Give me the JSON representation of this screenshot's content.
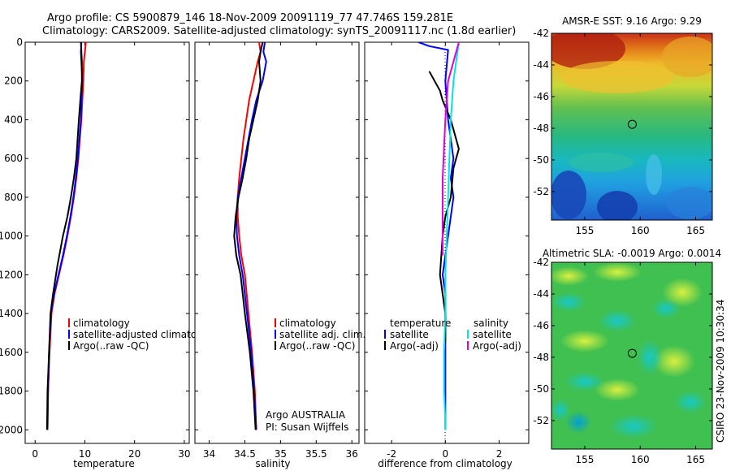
{
  "header": {
    "line1": "Argo profile: CS 5900879_146 18-Nov-2009 20091119_77 47.746S 159.281E",
    "line2": "Climatology: CARS2009. Satellite-adjusted climatology: synTS_20091117.nc (1.8d earlier)"
  },
  "colors": {
    "climatology": "#ff0000",
    "satellite": "#0000ff",
    "argo": "#000000",
    "sal_satellite": "#00e5e5",
    "sal_argo": "#e000e0"
  },
  "chart_data": [
    {
      "type": "line",
      "id": "temperature",
      "xlabel": "temperature",
      "xlim": [
        -2,
        31
      ],
      "ylim": [
        0,
        2070
      ],
      "xticks": [
        "0",
        "10",
        "20",
        "30"
      ],
      "yticks": [
        "0",
        "200",
        "400",
        "600",
        "800",
        "1000",
        "1200",
        "1400",
        "1600",
        "1800",
        "2000"
      ],
      "legend": [
        "climatology",
        "satellite-adjusted climatology",
        "Argo(..raw -QC)"
      ],
      "series": [
        {
          "name": "climatology",
          "color": "#ff0000",
          "x": [
            10.2,
            10.0,
            9.8,
            9.7,
            9.5,
            9.3,
            9.0,
            8.7,
            8.3,
            7.8,
            7.2,
            6.5,
            5.7,
            4.8,
            3.9,
            3.3,
            2.9,
            2.6,
            2.5
          ],
          "y": [
            0,
            50,
            100,
            200,
            300,
            400,
            500,
            600,
            700,
            800,
            900,
            1000,
            1100,
            1200,
            1300,
            1400,
            1600,
            1800,
            2000
          ]
        },
        {
          "name": "satellite",
          "color": "#0000ff",
          "x": [
            9.3,
            9.2,
            9.3,
            9.5,
            9.3,
            9.2,
            8.9,
            8.6,
            8.2,
            7.7,
            7.1,
            6.4,
            5.6,
            4.7,
            3.8,
            3.2,
            2.8,
            2.6,
            2.5
          ],
          "y": [
            0,
            50,
            100,
            200,
            300,
            400,
            500,
            600,
            700,
            800,
            900,
            1000,
            1100,
            1200,
            1300,
            1400,
            1600,
            1800,
            2000
          ]
        },
        {
          "name": "argo",
          "color": "#000000",
          "x": [
            9.2,
            9.3,
            9.4,
            9.4,
            9.1,
            8.8,
            8.3,
            7.8,
            7.2,
            6.5,
            5.6,
            4.5,
            3.6,
            3.1,
            2.8,
            2.5,
            2.4
          ],
          "y": [
            0,
            50,
            100,
            200,
            300,
            400,
            600,
            700,
            800,
            900,
            1000,
            1150,
            1300,
            1400,
            1600,
            1800,
            2000
          ]
        }
      ]
    },
    {
      "type": "line",
      "id": "salinity",
      "xlabel": "salinity",
      "xlim": [
        33.8,
        36.1
      ],
      "ylim": [
        0,
        2070
      ],
      "xticks": [
        "34",
        "34.5",
        "35",
        "35.5",
        "36"
      ],
      "legend": [
        "climatology",
        "satellite adj. clim.",
        "Argo(..raw -QC)"
      ],
      "annotation": [
        "Argo AUSTRALIA",
        "PI: Susan Wijffels"
      ],
      "series": [
        {
          "name": "climatology",
          "color": "#ff0000",
          "x": [
            34.7,
            34.72,
            34.68,
            34.62,
            34.56,
            34.52,
            34.48,
            34.45,
            34.42,
            34.4,
            34.4,
            34.42,
            34.45,
            34.5,
            34.55,
            34.6,
            34.64,
            34.66
          ],
          "y": [
            0,
            50,
            100,
            200,
            300,
            400,
            500,
            600,
            700,
            800,
            900,
            1000,
            1100,
            1200,
            1400,
            1600,
            1800,
            2000
          ]
        },
        {
          "name": "satellite",
          "color": "#0000ff",
          "x": [
            34.78,
            34.76,
            34.8,
            34.75,
            34.66,
            34.6,
            34.55,
            34.5,
            34.45,
            34.4,
            34.38,
            34.39,
            34.42,
            34.47,
            34.53,
            34.59,
            34.63,
            34.66
          ],
          "y": [
            0,
            50,
            100,
            200,
            300,
            400,
            500,
            600,
            700,
            800,
            900,
            1000,
            1100,
            1200,
            1400,
            1600,
            1800,
            2000
          ]
        },
        {
          "name": "argo",
          "color": "#000000",
          "x": [
            34.75,
            34.72,
            34.7,
            34.72,
            34.68,
            34.62,
            34.56,
            34.52,
            34.47,
            34.41,
            34.37,
            34.35,
            34.38,
            34.44,
            34.5,
            34.57,
            34.62,
            34.65
          ],
          "y": [
            0,
            50,
            100,
            200,
            300,
            400,
            500,
            600,
            700,
            800,
            900,
            1000,
            1100,
            1200,
            1400,
            1600,
            1800,
            2000
          ]
        }
      ]
    },
    {
      "type": "line",
      "id": "difference",
      "xlabel": "difference from climatology",
      "xlim": [
        -3,
        3.1
      ],
      "ylim": [
        0,
        2070
      ],
      "xticks": [
        "-2",
        "0",
        "2"
      ],
      "legend_headers": [
        "temperature",
        "salinity"
      ],
      "legend": [
        "satellite",
        "Argo(-adj)",
        "satellite",
        "Argo(-adj)"
      ],
      "series": [
        {
          "name": "temperature satellite",
          "color": "#0000ff",
          "x": [
            -1.0,
            -0.6,
            0.1,
            0.0,
            0.1,
            0.2,
            0.3,
            0.2,
            0.3,
            0.2,
            0.1,
            0.0,
            -0.1,
            0.0,
            0.0,
            0.0,
            0.0,
            0.0
          ],
          "y": [
            0,
            20,
            40,
            200,
            400,
            500,
            600,
            700,
            800,
            900,
            1000,
            1100,
            1200,
            1300,
            1500,
            1700,
            1900,
            2000
          ]
        },
        {
          "name": "temperature argo",
          "color": "#000000",
          "x": [
            -0.6,
            -0.2,
            -0.1,
            0.2,
            0.4,
            0.5,
            0.3,
            0.2,
            0.0,
            -0.1,
            -0.2,
            -0.1,
            0.0,
            0.0,
            0.0
          ],
          "y": [
            150,
            250,
            300,
            400,
            500,
            550,
            650,
            800,
            900,
            1000,
            1200,
            1300,
            1400,
            1500,
            1550
          ]
        },
        {
          "name": "salinity satellite",
          "color": "#00e5e5",
          "x": [
            0.5,
            0.4,
            0.3,
            0.2,
            0.15,
            0.1,
            0.05,
            0.0,
            0.0,
            -0.05,
            -0.05,
            0.0,
            0.0
          ],
          "y": [
            0,
            100,
            200,
            400,
            600,
            800,
            1000,
            1200,
            1400,
            1600,
            1800,
            1950,
            2000
          ]
        },
        {
          "name": "salinity argo",
          "color": "#e000e0",
          "x": [
            0.5,
            0.3,
            0.1,
            0.0,
            -0.1,
            -0.1,
            -0.1,
            -0.1
          ],
          "y": [
            0,
            100,
            200,
            400,
            700,
            900,
            1000,
            1100
          ]
        }
      ]
    },
    {
      "type": "heatmap",
      "id": "sst-map",
      "title": "AMSR-E SST: 9.16 Argo: 9.29",
      "xlim": [
        152,
        166.5
      ],
      "ylim": [
        -53.8,
        -42
      ],
      "xticks": [
        "155",
        "160",
        "165"
      ],
      "yticks": [
        "-42",
        "-44",
        "-46",
        "-48",
        "-50",
        "-52"
      ],
      "marker": {
        "lon": 159.28,
        "lat": -47.75
      }
    },
    {
      "type": "heatmap",
      "id": "sla-map",
      "title": "Altimetric SLA: -0.0019 Argo: 0.0014",
      "xlim": [
        152,
        166.5
      ],
      "ylim": [
        -53.8,
        -42
      ],
      "xticks": [
        "155",
        "160",
        "165"
      ],
      "yticks": [
        "-42",
        "-44",
        "-46",
        "-48",
        "-50",
        "-52"
      ],
      "marker": {
        "lon": 159.28,
        "lat": -47.75
      },
      "side_label": "CSIRO 23-Nov-2009 10:30:34"
    }
  ]
}
